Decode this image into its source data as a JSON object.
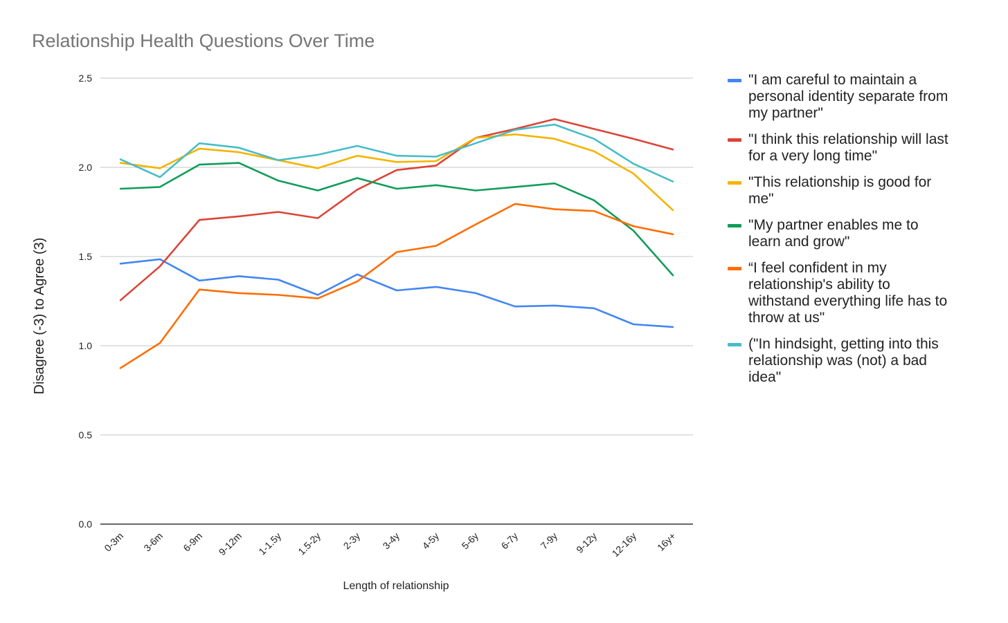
{
  "chart_data": {
    "type": "line",
    "title": "Relationship Health Questions Over Time",
    "xlabel": "Length of relationship",
    "ylabel": "Disagree (-3) to Agree (3)",
    "ylim": [
      0,
      2.5
    ],
    "yticks": [
      "0.0",
      "0.5",
      "1.0",
      "1.5",
      "2.0",
      "2.5"
    ],
    "grid": true,
    "legend_position": "right",
    "categories": [
      "0-3m",
      "3-6m",
      "6-9m",
      "9-12m",
      "1-1.5y",
      "1.5-2y",
      "2-3y",
      "3-4y",
      "4-5y",
      "5-6y",
      "6-7y",
      "7-9y",
      "9-12y",
      "12-16y",
      "16y+"
    ],
    "series": [
      {
        "name": "\"I am careful to maintain a personal identity separate from my partner\"",
        "legend_lines": [
          "\"I am careful to maintain a",
          "personal identity separate from",
          "my partner\""
        ],
        "color": "#4285f4",
        "values": [
          1.46,
          1.485,
          1.365,
          1.39,
          1.37,
          1.285,
          1.4,
          1.31,
          1.33,
          1.295,
          1.22,
          1.225,
          1.21,
          1.12,
          1.105
        ]
      },
      {
        "name": "\"I think this relationship will last for a very long time\"",
        "legend_lines": [
          "\"I think this relationship will last",
          "for a very long time\""
        ],
        "color": "#db4437",
        "values": [
          1.255,
          1.445,
          1.705,
          1.725,
          1.75,
          1.715,
          1.875,
          1.985,
          2.01,
          2.165,
          2.215,
          2.27,
          2.215,
          2.16,
          2.1
        ]
      },
      {
        "name": "\"This relationship is good for me\"",
        "legend_lines": [
          "\"This relationship is good for",
          "me\""
        ],
        "color": "#f4b400",
        "values": [
          2.025,
          1.995,
          2.105,
          2.085,
          2.04,
          1.995,
          2.065,
          2.03,
          2.035,
          2.165,
          2.185,
          2.16,
          2.09,
          1.965,
          1.76
        ]
      },
      {
        "name": "\"My partner enables me to learn and grow\"",
        "legend_lines": [
          "\"My partner enables me to",
          "learn and grow\""
        ],
        "color": "#0f9d58",
        "values": [
          1.88,
          1.89,
          2.015,
          2.025,
          1.925,
          1.87,
          1.94,
          1.88,
          1.9,
          1.87,
          1.89,
          1.91,
          1.815,
          1.645,
          1.395
        ]
      },
      {
        "name": "“I feel confident in my relationship's ability to withstand everything life has to throw at us\"",
        "legend_lines": [
          "“I feel confident in my",
          "relationship's ability to",
          "withstand everything life has to",
          "throw at us\""
        ],
        "color": "#ff6d01",
        "values": [
          0.875,
          1.015,
          1.315,
          1.295,
          1.285,
          1.265,
          1.36,
          1.525,
          1.56,
          1.68,
          1.795,
          1.765,
          1.755,
          1.67,
          1.625
        ]
      },
      {
        "name": "(\"In hindsight, getting into this relationship was (not) a bad idea\"",
        "legend_lines": [
          "(\"In hindsight, getting into this",
          "relationship was (not) a bad",
          "idea\""
        ],
        "color": "#46bdc6",
        "values": [
          2.045,
          1.945,
          2.135,
          2.11,
          2.04,
          2.07,
          2.12,
          2.065,
          2.06,
          2.135,
          2.21,
          2.24,
          2.16,
          2.02,
          1.92
        ]
      }
    ]
  }
}
